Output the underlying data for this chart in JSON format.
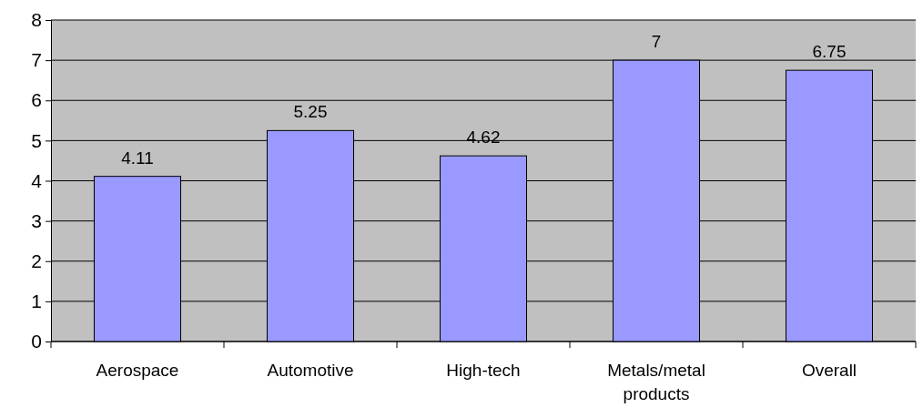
{
  "chart_data": {
    "type": "bar",
    "categories": [
      "Aerospace",
      "Automotive",
      "High-tech",
      "Metals/metal products",
      "Overall"
    ],
    "values": [
      4.11,
      5.25,
      4.62,
      7,
      6.75
    ],
    "color": "#9999ff",
    "ylim": [
      0,
      8
    ],
    "yticks": [
      0,
      1,
      2,
      3,
      4,
      5,
      6,
      7,
      8
    ],
    "grid": "y",
    "data_labels": true
  }
}
